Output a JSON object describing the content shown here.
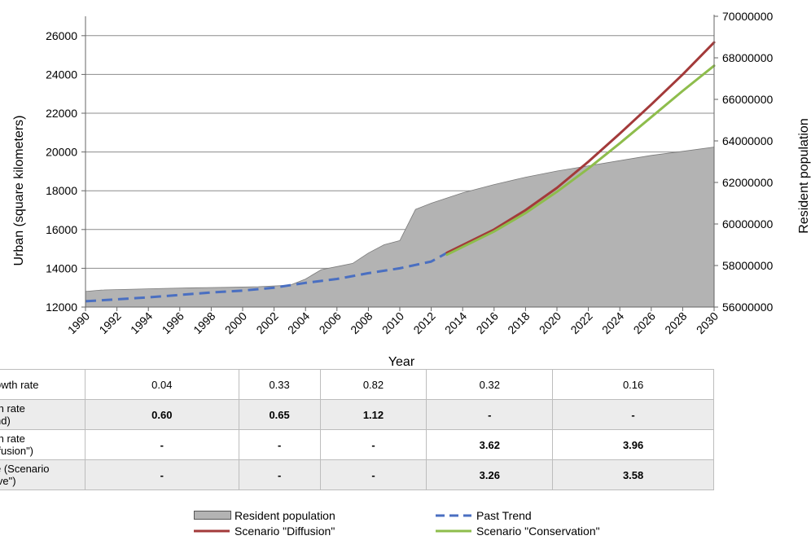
{
  "chart_data": {
    "type": "area",
    "xlabel": "Year",
    "ylabel_left": "Urban (square kilometers)",
    "ylabel_right": "Resident population",
    "x_range": [
      1990,
      2030
    ],
    "x_ticks": [
      "1990",
      "1992",
      "1994",
      "1996",
      "1998",
      "2000",
      "2002",
      "2004",
      "2006",
      "2008",
      "2010",
      "2012",
      "2014",
      "2016",
      "2018",
      "2020",
      "2022",
      "2024",
      "2026",
      "2028",
      "2030"
    ],
    "y_left_range": [
      12000,
      27000
    ],
    "y_left_ticks": [
      "12000",
      "14000",
      "16000",
      "18000",
      "20000",
      "22000",
      "24000",
      "26000"
    ],
    "y_right_range": [
      56000000,
      70000000
    ],
    "y_right_ticks": [
      "56000000",
      "58000000",
      "60000000",
      "62000000",
      "64000000",
      "66000000",
      "68000000",
      "70000000"
    ],
    "grid": "horizontal",
    "series": [
      {
        "name": "Resident population",
        "kind": "area",
        "axis": "right",
        "color": "#b3b3b3",
        "points": [
          [
            1990,
            56750000
          ],
          [
            1991,
            56820000
          ],
          [
            1993,
            56860000
          ],
          [
            1995,
            56900000
          ],
          [
            1997,
            56930000
          ],
          [
            1999,
            56950000
          ],
          [
            2001,
            56980000
          ],
          [
            2003,
            57050000
          ],
          [
            2004,
            57350000
          ],
          [
            2005,
            57800000
          ],
          [
            2006,
            57950000
          ],
          [
            2007,
            58100000
          ],
          [
            2008,
            58600000
          ],
          [
            2009,
            59000000
          ],
          [
            2010,
            59200000
          ],
          [
            2011,
            60700000
          ],
          [
            2012,
            61000000
          ],
          [
            2013,
            61250000
          ],
          [
            2014,
            61500000
          ],
          [
            2016,
            61900000
          ],
          [
            2018,
            62250000
          ],
          [
            2020,
            62550000
          ],
          [
            2022,
            62800000
          ],
          [
            2024,
            63050000
          ],
          [
            2026,
            63300000
          ],
          [
            2028,
            63500000
          ],
          [
            2030,
            63700000
          ]
        ]
      },
      {
        "name": "Past Trend",
        "kind": "dashed-line",
        "axis": "left",
        "color": "#4a6fc1",
        "points": [
          [
            1990,
            12300
          ],
          [
            1994,
            12500
          ],
          [
            1998,
            12750
          ],
          [
            2000,
            12850
          ],
          [
            2002,
            13000
          ],
          [
            2004,
            13250
          ],
          [
            2006,
            13450
          ],
          [
            2008,
            13750
          ],
          [
            2010,
            14000
          ],
          [
            2012,
            14350
          ],
          [
            2013,
            14800
          ]
        ]
      },
      {
        "name": "Scenario \"Diffusion\"",
        "kind": "line",
        "axis": "left",
        "color": "#a33a3a",
        "points": [
          [
            2013,
            14800
          ],
          [
            2016,
            16000
          ],
          [
            2018,
            17000
          ],
          [
            2020,
            18150
          ],
          [
            2022,
            19500
          ],
          [
            2024,
            20950
          ],
          [
            2026,
            22450
          ],
          [
            2028,
            24000
          ],
          [
            2030,
            25650
          ]
        ]
      },
      {
        "name": "Scenario \"Conservation\"",
        "kind": "line",
        "axis": "left",
        "color": "#8ebd4c",
        "points": [
          [
            2013,
            14700
          ],
          [
            2016,
            15900
          ],
          [
            2018,
            16850
          ],
          [
            2020,
            17950
          ],
          [
            2022,
            19150
          ],
          [
            2024,
            20450
          ],
          [
            2026,
            21800
          ],
          [
            2028,
            23150
          ],
          [
            2030,
            24450
          ]
        ]
      }
    ]
  },
  "table": {
    "rows": [
      {
        "label": "owth rate",
        "values": [
          "0.04",
          "0.33",
          "0.82",
          "0.32",
          "0.16"
        ],
        "shaded": false,
        "bold": false
      },
      {
        "label": "th rate\nnd)",
        "values": [
          "0.60",
          "0.65",
          "1.12",
          "-",
          "-"
        ],
        "shaded": true,
        "bold": true
      },
      {
        "label": "th rate\nffusion\")",
        "values": [
          "-",
          "-",
          "-",
          "3.62",
          "3.96"
        ],
        "shaded": false,
        "bold": true
      },
      {
        "label": "e (Scenario\nive\")",
        "values": [
          "-",
          "-",
          "-",
          "3.26",
          "3.58"
        ],
        "shaded": true,
        "bold": true
      }
    ]
  },
  "legend": {
    "resident": "Resident population",
    "past": "Past Trend",
    "diffusion": "Scenario \"Diffusion\"",
    "conservation": "Scenario \"Conservation\""
  }
}
